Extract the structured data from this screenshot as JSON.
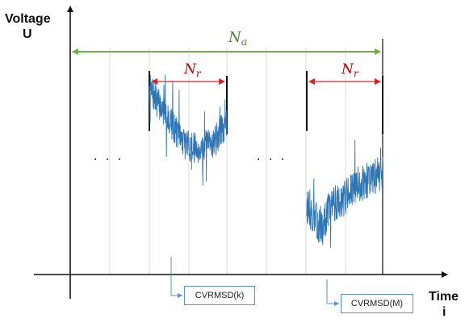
{
  "axes": {
    "y_title": "Voltage",
    "y_symbol": "U",
    "x_title": "Time",
    "x_symbol": "i"
  },
  "annotations": {
    "span_all": {
      "base": "N",
      "sub": "a"
    },
    "window_k": {
      "base": "N",
      "sub": "r"
    },
    "window_m": {
      "base": "N",
      "sub": "r"
    },
    "ellipsis_left": "· · ·",
    "ellipsis_mid": "· · ·"
  },
  "callouts": {
    "k_label": "CVRMSD(k)",
    "m_label": "CVRMSD(M)"
  },
  "colors": {
    "axis": "#111111",
    "grid": "#d9d9d9",
    "span_arrow": "#70ad47",
    "span_text": "#548235",
    "window_arrow": "#e02020",
    "window_text": "#c00000",
    "signal": "#2e75b6",
    "callout_border": "#5b8fc9"
  },
  "signal_k": {
    "seed": 7,
    "count": 300,
    "start_level": 0.82,
    "drop_to": 0.58,
    "end_level": 0.66,
    "noise": 0.07,
    "spike_rate": 0.06
  },
  "signal_m": {
    "seed": 13,
    "count": 300,
    "start_level": 0.3,
    "dip_to": 0.2,
    "end_level": 0.46,
    "noise": 0.08,
    "spike_rate": 0.06
  }
}
